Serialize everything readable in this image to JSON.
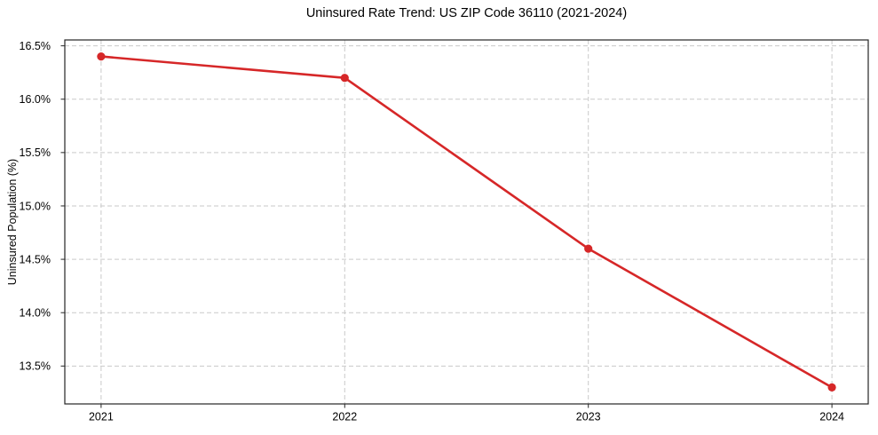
{
  "chart_data": {
    "type": "line",
    "title": "Uninsured Rate Trend: US ZIP Code 36110 (2021-2024)",
    "xlabel": "",
    "ylabel": "Uninsured Population (%)",
    "x": [
      2021,
      2022,
      2023,
      2024
    ],
    "values": [
      16.4,
      16.2,
      14.6,
      13.3
    ],
    "xticks": [
      2021,
      2022,
      2023,
      2024
    ],
    "xtick_labels": [
      "2021",
      "2022",
      "2023",
      "2024"
    ],
    "yticks": [
      13.5,
      14.0,
      14.5,
      15.0,
      15.5,
      16.0,
      16.5
    ],
    "ytick_labels": [
      "13.5%",
      "14.0%",
      "14.5%",
      "15.0%",
      "15.5%",
      "16.0%",
      "16.5%"
    ],
    "xlim": [
      2020.851,
      2024.149
    ],
    "ylim": [
      13.145,
      16.555
    ],
    "grid": true,
    "grid_style": "dashed",
    "legend": false,
    "marker": "circle",
    "colors": {
      "line": "#d62728",
      "marker": "#d62728",
      "grid": "#c9c9c9",
      "axis": "#262626",
      "text": "#000000"
    }
  }
}
